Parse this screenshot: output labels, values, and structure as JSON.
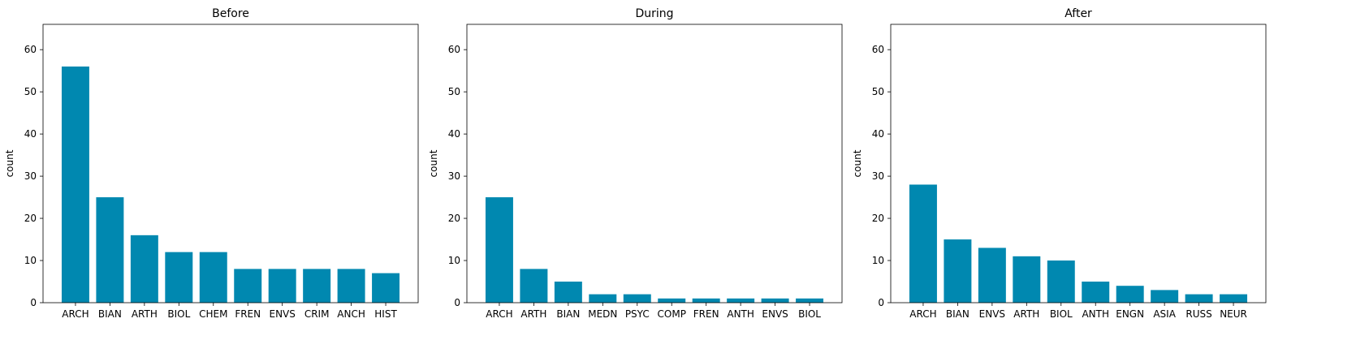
{
  "colors": {
    "bar": "#0088b0",
    "axis": "#000000",
    "background": "#ffffff"
  },
  "chart_data": [
    {
      "type": "bar",
      "title": "Before",
      "xlabel": "",
      "ylabel": "count",
      "ylim": [
        0,
        66
      ],
      "yticks": [
        0,
        10,
        20,
        30,
        40,
        50,
        60
      ],
      "grid": false,
      "categories": [
        "ARCH",
        "BIAN",
        "ARTH",
        "BIOL",
        "CHEM",
        "FREN",
        "ENVS",
        "CRIM",
        "ANCH",
        "HIST"
      ],
      "values": [
        56,
        25,
        16,
        12,
        12,
        8,
        8,
        8,
        8,
        7
      ]
    },
    {
      "type": "bar",
      "title": "During",
      "xlabel": "",
      "ylabel": "count",
      "ylim": [
        0,
        66
      ],
      "yticks": [
        0,
        10,
        20,
        30,
        40,
        50,
        60
      ],
      "grid": false,
      "categories": [
        "ARCH",
        "ARTH",
        "BIAN",
        "MEDN",
        "PSYC",
        "COMP",
        "FREN",
        "ANTH",
        "ENVS",
        "BIOL"
      ],
      "values": [
        25,
        8,
        5,
        2,
        2,
        1,
        1,
        1,
        1,
        1
      ]
    },
    {
      "type": "bar",
      "title": "After",
      "xlabel": "",
      "ylabel": "count",
      "ylim": [
        0,
        66
      ],
      "yticks": [
        0,
        10,
        20,
        30,
        40,
        50,
        60
      ],
      "grid": false,
      "categories": [
        "ARCH",
        "BIAN",
        "ENVS",
        "ARTH",
        "BIOL",
        "ANTH",
        "ENGN",
        "ASIA",
        "RUSS",
        "NEUR"
      ],
      "values": [
        28,
        15,
        13,
        11,
        10,
        5,
        4,
        3,
        2,
        2
      ]
    }
  ]
}
